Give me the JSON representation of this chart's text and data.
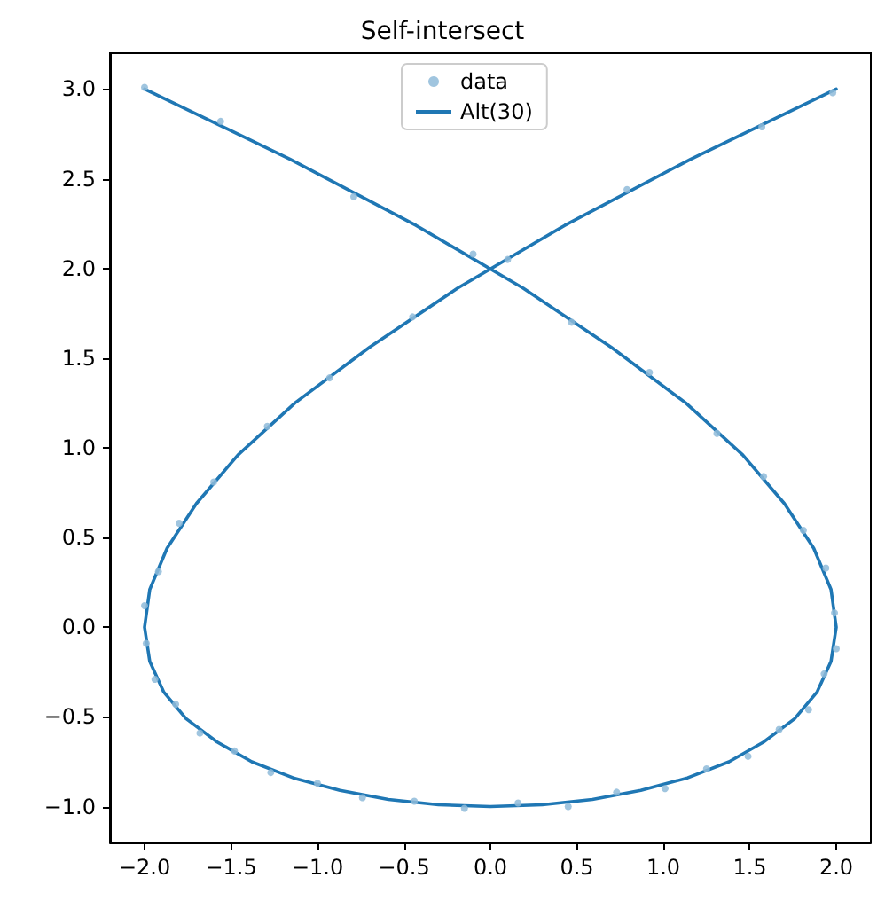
{
  "chart_data": {
    "type": "scatter",
    "title": "Self-intersect",
    "xlim": [
      -2.2,
      2.2
    ],
    "ylim": [
      -1.2,
      3.2
    ],
    "xticks": [
      {
        "value": -2,
        "label": "−2.0"
      },
      {
        "value": -1.5,
        "label": "−1.5"
      },
      {
        "value": -1,
        "label": "−1.0"
      },
      {
        "value": -0.5,
        "label": "−0.5"
      },
      {
        "value": 0,
        "label": "0.0"
      },
      {
        "value": 0.5,
        "label": "0.5"
      },
      {
        "value": 1,
        "label": "1.0"
      },
      {
        "value": 1.5,
        "label": "1.5"
      },
      {
        "value": 2,
        "label": "2.0"
      }
    ],
    "yticks": [
      {
        "value": -1,
        "label": "−1.0"
      },
      {
        "value": -0.5,
        "label": "−0.5"
      },
      {
        "value": 0,
        "label": "0.0"
      },
      {
        "value": 0.5,
        "label": "0.5"
      },
      {
        "value": 1,
        "label": "1.0"
      },
      {
        "value": 1.5,
        "label": "1.5"
      },
      {
        "value": 2,
        "label": "2.0"
      },
      {
        "value": 2.5,
        "label": "2.5"
      },
      {
        "value": 3,
        "label": "3.0"
      }
    ],
    "grid": false,
    "legend": "top",
    "marker": "circle",
    "series": [
      {
        "name": "data",
        "color": "#8fbbd9",
        "x": [
          -2.0,
          -1.56,
          -0.79,
          -0.1,
          0.47,
          0.92,
          1.31,
          1.58,
          1.81,
          1.94,
          1.99,
          2.0,
          1.93,
          1.84,
          1.67,
          1.49,
          1.25,
          1.01,
          0.73,
          0.45,
          0.16,
          -0.15,
          -0.44,
          -0.74,
          -1.0,
          -1.27,
          -1.48,
          -1.68,
          -1.82,
          -1.94,
          -1.99,
          -2.0,
          -1.92,
          -1.8,
          -1.6,
          -1.29,
          -0.93,
          -0.45,
          0.1,
          0.79,
          1.57,
          1.98
        ],
        "values": [
          3.01,
          2.82,
          2.4,
          2.08,
          1.7,
          1.42,
          1.08,
          0.84,
          0.54,
          0.33,
          0.08,
          -0.12,
          -0.26,
          -0.46,
          -0.57,
          -0.72,
          -0.79,
          -0.9,
          -0.92,
          -1.0,
          -0.98,
          -1.01,
          -0.97,
          -0.95,
          -0.87,
          -0.81,
          -0.69,
          -0.59,
          -0.43,
          -0.29,
          -0.09,
          0.12,
          0.31,
          0.58,
          0.81,
          1.12,
          1.39,
          1.73,
          2.05,
          2.44,
          2.79,
          2.98
        ]
      },
      {
        "name": "Alt(30)",
        "type": "line",
        "marker": "none",
        "color": "#1f77b4",
        "x": [
          -2,
          -1.16,
          -0.43,
          0.19,
          0.7,
          1.13,
          1.46,
          1.7,
          1.87,
          1.97,
          2,
          1.97,
          1.89,
          1.76,
          1.58,
          1.38,
          1.14,
          0.87,
          0.59,
          0.3,
          0,
          -0.3,
          -0.59,
          -0.87,
          -1.14,
          -1.38,
          -1.58,
          -1.76,
          -1.89,
          -1.97,
          -2,
          -1.97,
          -1.87,
          -1.7,
          -1.46,
          -1.13,
          -0.7,
          -0.19,
          0.43,
          1.16,
          2
        ],
        "values": [
          3,
          2.61,
          2.24,
          1.89,
          1.56,
          1.25,
          0.96,
          0.69,
          0.44,
          0.21,
          0,
          -0.19,
          -0.36,
          -0.51,
          -0.64,
          -0.75,
          -0.84,
          -0.91,
          -0.96,
          -0.99,
          -1,
          -0.99,
          -0.96,
          -0.91,
          -0.84,
          -0.75,
          -0.64,
          -0.51,
          -0.36,
          -0.19,
          0,
          0.21,
          0.44,
          0.69,
          0.96,
          1.25,
          1.56,
          1.89,
          2.24,
          2.61,
          3
        ]
      }
    ]
  }
}
